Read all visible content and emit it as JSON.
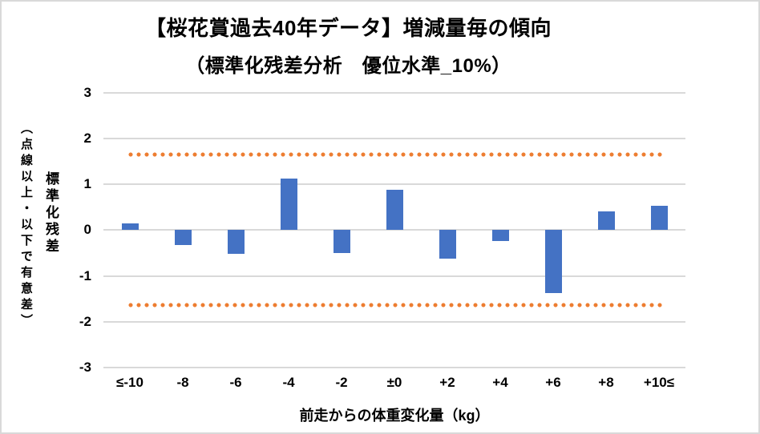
{
  "title": "【桜花賞過去40年データ】増減量毎の傾向",
  "subtitle": "（標準化残差分析　優位水準_10%）",
  "y_axis": {
    "title_main": "標準化残差",
    "title_note": "（点線以上・以下で有意差）"
  },
  "x_axis": {
    "title": "前走からの体重変化量（kg）"
  },
  "colors": {
    "bar": "#4472C4",
    "threshold_dots": "#ED7D31",
    "gridline": "#D9D9D9",
    "border": "#D9D9D9",
    "text": "#000000"
  },
  "chart_data": {
    "type": "bar",
    "title": "【桜花賞過去40年データ】増減量毎の傾向（標準化残差分析 優位水準_10%）",
    "categories": [
      "≤-10",
      "-8",
      "-6",
      "-4",
      "-2",
      "±0",
      "+2",
      "+4",
      "+6",
      "+8",
      "+10≤"
    ],
    "values": [
      0.15,
      -0.33,
      -0.51,
      1.12,
      -0.5,
      0.88,
      -0.63,
      -0.23,
      -1.37,
      0.41,
      0.54
    ],
    "xlabel": "前走からの体重変化量（kg）",
    "ylabel": "標準化残差（点線以上・以下で有意差）",
    "ylim": [
      -3,
      3
    ],
    "yticks": [
      3,
      2,
      1,
      0,
      -1,
      -2,
      -3
    ],
    "threshold_upper": 1.645,
    "threshold_lower": -1.645,
    "grid": true,
    "legend": false
  }
}
